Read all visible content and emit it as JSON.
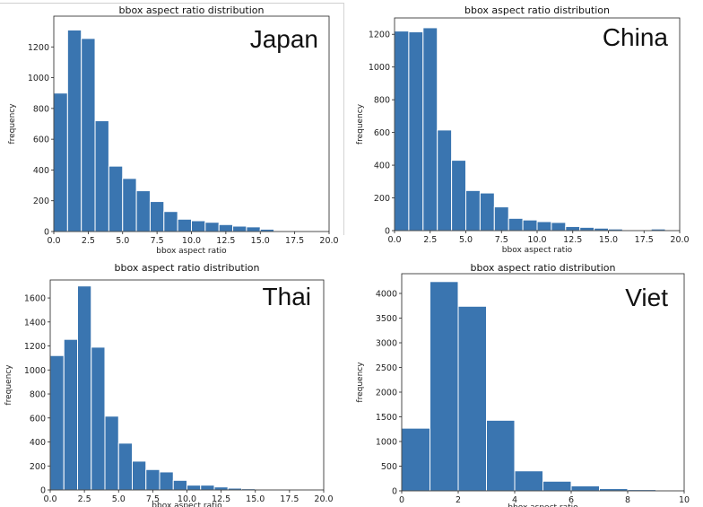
{
  "chart_data": [
    {
      "type": "bar",
      "title": "bbox aspect ratio distribution",
      "annotation": "Japan",
      "xlabel": "bbox aspect ratio",
      "ylabel": "frequency",
      "color": "#3a75b0",
      "xlim": [
        0,
        20
      ],
      "ylim": [
        0,
        1400
      ],
      "xticks": [
        0,
        2.5,
        5,
        7.5,
        10,
        12.5,
        15,
        17.5,
        20
      ],
      "xtick_labels": [
        "0.0",
        "2.5",
        "5.0",
        "7.5",
        "10.0",
        "12.5",
        "15.0",
        "17.5",
        "20.0"
      ],
      "yticks": [
        0,
        200,
        400,
        600,
        800,
        1000,
        1200
      ],
      "ytick_labels": [
        "0",
        "200",
        "400",
        "600",
        "800",
        "1000",
        "1200"
      ],
      "bin_start": 0,
      "bin_width": 1,
      "values": [
        900,
        1310,
        1255,
        720,
        425,
        345,
        265,
        195,
        130,
        80,
        70,
        60,
        45,
        35,
        30,
        15,
        5,
        3,
        0,
        0
      ]
    },
    {
      "type": "bar",
      "title": "bbox aspect ratio distribution",
      "annotation": "China",
      "xlabel": "bbox aspect ratio",
      "ylabel": "frequency",
      "color": "#3a75b0",
      "xlim": [
        0,
        20
      ],
      "ylim": [
        0,
        1300
      ],
      "xticks": [
        0,
        2.5,
        5,
        7.5,
        10,
        12.5,
        15,
        17.5,
        20
      ],
      "xtick_labels": [
        "0.0",
        "2.5",
        "5.0",
        "7.5",
        "10.0",
        "12.5",
        "15.0",
        "17.5",
        "20.0"
      ],
      "yticks": [
        0,
        200,
        400,
        600,
        800,
        1000,
        1200
      ],
      "ytick_labels": [
        "0",
        "200",
        "400",
        "600",
        "800",
        "1000",
        "1200"
      ],
      "bin_start": 0,
      "bin_width": 1,
      "values": [
        1220,
        1215,
        1240,
        615,
        430,
        245,
        230,
        145,
        75,
        65,
        55,
        50,
        25,
        20,
        15,
        10,
        5,
        5,
        10,
        5
      ]
    },
    {
      "type": "bar",
      "title": "bbox aspect ratio distribution",
      "annotation": "Thai",
      "xlabel": "bbox aspect ratio",
      "ylabel": "frequency",
      "color": "#3a75b0",
      "xlim": [
        0,
        20
      ],
      "ylim": [
        0,
        1750
      ],
      "xticks": [
        0,
        2.5,
        5,
        7.5,
        10,
        12.5,
        15,
        17.5,
        20
      ],
      "xtick_labels": [
        "0.0",
        "2.5",
        "5.0",
        "7.5",
        "10.0",
        "12.5",
        "15.0",
        "17.5",
        "20.0"
      ],
      "yticks": [
        0,
        200,
        400,
        600,
        800,
        1000,
        1200,
        1400,
        1600
      ],
      "ytick_labels": [
        "0",
        "200",
        "400",
        "600",
        "800",
        "1000",
        "1200",
        "1400",
        "1600"
      ],
      "bin_start": 0,
      "bin_width": 1,
      "values": [
        1120,
        1255,
        1700,
        1190,
        615,
        390,
        240,
        170,
        150,
        80,
        40,
        40,
        25,
        15,
        10,
        5,
        5,
        0,
        0,
        0
      ]
    },
    {
      "type": "bar",
      "title": "bbox aspect ratio distribution",
      "annotation": "Viet",
      "xlabel": "bbox aspect ratio",
      "ylabel": "frequency",
      "color": "#3a75b0",
      "xlim": [
        0,
        10
      ],
      "ylim": [
        0,
        4400
      ],
      "xticks": [
        0,
        2,
        4,
        6,
        8,
        10
      ],
      "xtick_labels": [
        "0",
        "2",
        "4",
        "6",
        "8",
        "10"
      ],
      "yticks": [
        0,
        500,
        1000,
        1500,
        2000,
        2500,
        3000,
        3500,
        4000
      ],
      "ytick_labels": [
        "0",
        "500",
        "1000",
        "1500",
        "2000",
        "2500",
        "3000",
        "3500",
        "4000"
      ],
      "bin_start": 0,
      "bin_width": 1,
      "values": [
        1270,
        4240,
        3740,
        1430,
        405,
        195,
        100,
        45,
        25,
        0
      ]
    }
  ]
}
